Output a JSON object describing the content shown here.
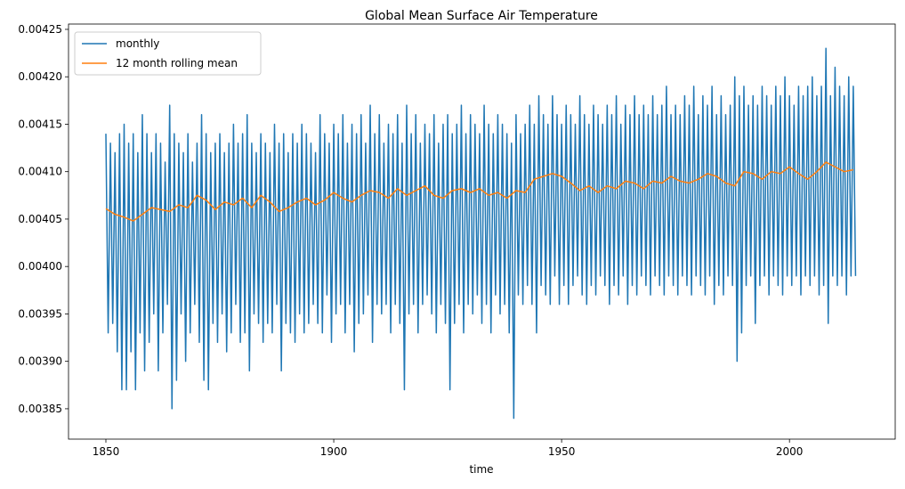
{
  "chart_data": {
    "type": "line",
    "title": "Global Mean Surface Air Temperature",
    "xlabel": "time",
    "xlim": [
      1841.8,
      2023.2
    ],
    "xticks": [
      1850,
      1900,
      1950,
      2000
    ],
    "ylim": [
      0.003818,
      0.0042556
    ],
    "yticks": [
      0.00385,
      {
        "value": 0.0039,
        "label": "0.00390"
      },
      0.00395,
      {
        "value": 0.004,
        "label": "0.00400"
      },
      0.00405,
      {
        "value": 0.0041,
        "label": "0.00410"
      },
      0.00415,
      {
        "value": 0.0042,
        "label": "0.00420"
      },
      0.00425
    ],
    "grid": false,
    "legend": "upper left",
    "series": [
      {
        "name": "monthly",
        "color": "#1f77b4",
        "x": [
          1850,
          1850.5,
          1851,
          1851.5,
          1852,
          1852.5,
          1853,
          1853.5,
          1854,
          1854.5,
          1855,
          1855.5,
          1856,
          1856.5,
          1857,
          1857.5,
          1858,
          1858.5,
          1859,
          1859.5,
          1860,
          1860.5,
          1861,
          1861.5,
          1862,
          1862.5,
          1863,
          1863.5,
          1864,
          1864.5,
          1865,
          1865.5,
          1866,
          1866.5,
          1867,
          1867.5,
          1868,
          1868.5,
          1869,
          1869.5,
          1870,
          1870.5,
          1871,
          1871.5,
          1872,
          1872.5,
          1873,
          1873.5,
          1874,
          1874.5,
          1875,
          1875.5,
          1876,
          1876.5,
          1877,
          1877.5,
          1878,
          1878.5,
          1879,
          1879.5,
          1880,
          1880.5,
          1881,
          1881.5,
          1882,
          1882.5,
          1883,
          1883.5,
          1884,
          1884.5,
          1885,
          1885.5,
          1886,
          1886.5,
          1887,
          1887.5,
          1888,
          1888.5,
          1889,
          1889.5,
          1890,
          1890.5,
          1891,
          1891.5,
          1892,
          1892.5,
          1893,
          1893.5,
          1894,
          1894.5,
          1895,
          1895.5,
          1896,
          1896.5,
          1897,
          1897.5,
          1898,
          1898.5,
          1899,
          1899.5,
          1900,
          1900.5,
          1901,
          1901.5,
          1902,
          1902.5,
          1903,
          1903.5,
          1904,
          1904.5,
          1905,
          1905.5,
          1906,
          1906.5,
          1907,
          1907.5,
          1908,
          1908.5,
          1909,
          1909.5,
          1910,
          1910.5,
          1911,
          1911.5,
          1912,
          1912.5,
          1913,
          1913.5,
          1914,
          1914.5,
          1915,
          1915.5,
          1916,
          1916.5,
          1917,
          1917.5,
          1918,
          1918.5,
          1919,
          1919.5,
          1920,
          1920.5,
          1921,
          1921.5,
          1922,
          1922.5,
          1923,
          1923.5,
          1924,
          1924.5,
          1925,
          1925.5,
          1926,
          1926.5,
          1927,
          1927.5,
          1928,
          1928.5,
          1929,
          1929.5,
          1930,
          1930.5,
          1931,
          1931.5,
          1932,
          1932.5,
          1933,
          1933.5,
          1934,
          1934.5,
          1935,
          1935.5,
          1936,
          1936.5,
          1937,
          1937.5,
          1938,
          1938.5,
          1939,
          1939.5,
          1940,
          1940.5,
          1941,
          1941.5,
          1942,
          1942.5,
          1943,
          1943.5,
          1944,
          1944.5,
          1945,
          1945.5,
          1946,
          1946.5,
          1947,
          1947.5,
          1948,
          1948.5,
          1949,
          1949.5,
          1950,
          1950.5,
          1951,
          1951.5,
          1952,
          1952.5,
          1953,
          1953.5,
          1954,
          1954.5,
          1955,
          1955.5,
          1956,
          1956.5,
          1957,
          1957.5,
          1958,
          1958.5,
          1959,
          1959.5,
          1960,
          1960.5,
          1961,
          1961.5,
          1962,
          1962.5,
          1963,
          1963.5,
          1964,
          1964.5,
          1965,
          1965.5,
          1966,
          1966.5,
          1967,
          1967.5,
          1968,
          1968.5,
          1969,
          1969.5,
          1970,
          1970.5,
          1971,
          1971.5,
          1972,
          1972.5,
          1973,
          1973.5,
          1974,
          1974.5,
          1975,
          1975.5,
          1976,
          1976.5,
          1977,
          1977.5,
          1978,
          1978.5,
          1979,
          1979.5,
          1980,
          1980.5,
          1981,
          1981.5,
          1982,
          1982.5,
          1983,
          1983.5,
          1984,
          1984.5,
          1985,
          1985.5,
          1986,
          1986.5,
          1987,
          1987.5,
          1988,
          1988.5,
          1989,
          1989.5,
          1990,
          1990.5,
          1991,
          1991.5,
          1992,
          1992.5,
          1993,
          1993.5,
          1994,
          1994.5,
          1995,
          1995.5,
          1996,
          1996.5,
          1997,
          1997.5,
          1998,
          1998.5,
          1999,
          1999.5,
          2000,
          2000.5,
          2001,
          2001.5,
          2002,
          2002.5,
          2003,
          2003.5,
          2004,
          2004.5,
          2005,
          2005.5,
          2006,
          2006.5,
          2007,
          2007.5,
          2008,
          2008.5,
          2009,
          2009.5,
          2010,
          2010.5,
          2011,
          2011.5,
          2012,
          2012.5,
          2013,
          2013.5,
          2014,
          2014.5
        ],
        "values": [
          0.00414,
          0.00393,
          0.00413,
          0.00394,
          0.00412,
          0.00391,
          0.00414,
          0.00387,
          0.00415,
          0.00387,
          0.00413,
          0.00391,
          0.00414,
          0.00387,
          0.00412,
          0.00393,
          0.00416,
          0.00389,
          0.00414,
          0.00392,
          0.00412,
          0.00395,
          0.00414,
          0.00389,
          0.00413,
          0.00393,
          0.00411,
          0.00396,
          0.00417,
          0.00385,
          0.00414,
          0.00388,
          0.00413,
          0.00395,
          0.00412,
          0.0039,
          0.00414,
          0.00393,
          0.00411,
          0.00396,
          0.00413,
          0.00392,
          0.00416,
          0.00388,
          0.00414,
          0.00387,
          0.00412,
          0.00394,
          0.00413,
          0.00392,
          0.00414,
          0.00395,
          0.00412,
          0.00391,
          0.00413,
          0.00393,
          0.00415,
          0.00396,
          0.00413,
          0.00392,
          0.00414,
          0.00393,
          0.00416,
          0.00389,
          0.00413,
          0.00395,
          0.00412,
          0.00394,
          0.00414,
          0.00392,
          0.00413,
          0.00394,
          0.00412,
          0.00393,
          0.00415,
          0.00396,
          0.00413,
          0.00389,
          0.00414,
          0.00394,
          0.00412,
          0.00393,
          0.00414,
          0.00392,
          0.00413,
          0.00395,
          0.00415,
          0.00393,
          0.00414,
          0.00394,
          0.00413,
          0.00396,
          0.00412,
          0.00394,
          0.00416,
          0.00393,
          0.00414,
          0.00397,
          0.00413,
          0.00392,
          0.00415,
          0.00395,
          0.00414,
          0.00396,
          0.00416,
          0.00393,
          0.00413,
          0.00396,
          0.00415,
          0.00391,
          0.00414,
          0.00394,
          0.00416,
          0.00395,
          0.00413,
          0.00397,
          0.00417,
          0.00392,
          0.00414,
          0.00396,
          0.00416,
          0.00395,
          0.00413,
          0.00396,
          0.00415,
          0.00393,
          0.00414,
          0.00396,
          0.00416,
          0.00394,
          0.00413,
          0.00387,
          0.00417,
          0.00395,
          0.00414,
          0.00396,
          0.00416,
          0.00393,
          0.00413,
          0.00396,
          0.00415,
          0.00397,
          0.00414,
          0.00395,
          0.00416,
          0.00393,
          0.00413,
          0.00396,
          0.00415,
          0.00394,
          0.00416,
          0.00387,
          0.00414,
          0.00394,
          0.00415,
          0.00396,
          0.00417,
          0.00393,
          0.00414,
          0.00396,
          0.00416,
          0.00395,
          0.00415,
          0.00397,
          0.00414,
          0.00394,
          0.00417,
          0.00396,
          0.00415,
          0.00393,
          0.00414,
          0.00397,
          0.00416,
          0.00395,
          0.00415,
          0.00396,
          0.00414,
          0.00393,
          0.00413,
          0.00384,
          0.00416,
          0.00397,
          0.00414,
          0.00396,
          0.00415,
          0.00398,
          0.00417,
          0.00396,
          0.00415,
          0.00393,
          0.00418,
          0.00398,
          0.00416,
          0.00397,
          0.00415,
          0.00396,
          0.00418,
          0.00399,
          0.00416,
          0.00396,
          0.00415,
          0.00398,
          0.00417,
          0.00396,
          0.00416,
          0.00398,
          0.00415,
          0.00399,
          0.00418,
          0.00397,
          0.00416,
          0.00396,
          0.00415,
          0.00398,
          0.00417,
          0.00397,
          0.00416,
          0.00399,
          0.00415,
          0.00398,
          0.00417,
          0.00396,
          0.00416,
          0.00398,
          0.00418,
          0.00397,
          0.00415,
          0.00399,
          0.00417,
          0.00396,
          0.00416,
          0.00398,
          0.00418,
          0.00397,
          0.00416,
          0.00399,
          0.00417,
          0.00398,
          0.00416,
          0.00397,
          0.00418,
          0.00399,
          0.00416,
          0.00398,
          0.00417,
          0.00397,
          0.00419,
          0.00399,
          0.00416,
          0.00398,
          0.00417,
          0.00397,
          0.00416,
          0.00399,
          0.00418,
          0.00398,
          0.00417,
          0.00397,
          0.00419,
          0.00399,
          0.00416,
          0.00398,
          0.00418,
          0.00397,
          0.00417,
          0.00399,
          0.00419,
          0.00396,
          0.00416,
          0.00398,
          0.00418,
          0.00397,
          0.00416,
          0.00399,
          0.00417,
          0.00398,
          0.0042,
          0.0039,
          0.00418,
          0.00393,
          0.00419,
          0.00398,
          0.00417,
          0.00399,
          0.00418,
          0.00394,
          0.00417,
          0.00398,
          0.00419,
          0.00399,
          0.00418,
          0.00397,
          0.00417,
          0.00399,
          0.00419,
          0.00398,
          0.00418,
          0.00397,
          0.0042,
          0.00399,
          0.00418,
          0.00398,
          0.00417,
          0.00399,
          0.00419,
          0.00397,
          0.00418,
          0.00399,
          0.00419,
          0.00398,
          0.0042,
          0.00399,
          0.00418,
          0.00397,
          0.00419,
          0.00398,
          0.00423,
          0.00394,
          0.00418,
          0.00399,
          0.00421,
          0.00398,
          0.00419,
          0.00399,
          0.00418,
          0.00397,
          0.0042,
          0.00399,
          0.00419,
          0.00399
        ]
      },
      {
        "name": "12 month rolling mean",
        "color": "#ff7f0e",
        "x": [
          1850,
          1852,
          1854,
          1856,
          1858,
          1860,
          1862,
          1864,
          1866,
          1868,
          1870,
          1872,
          1874,
          1876,
          1878,
          1880,
          1882,
          1884,
          1886,
          1888,
          1890,
          1892,
          1894,
          1896,
          1898,
          1900,
          1902,
          1904,
          1906,
          1908,
          1910,
          1912,
          1914,
          1916,
          1918,
          1920,
          1922,
          1924,
          1926,
          1928,
          1930,
          1932,
          1934,
          1936,
          1938,
          1940,
          1942,
          1944,
          1946,
          1948,
          1950,
          1952,
          1954,
          1956,
          1958,
          1960,
          1962,
          1964,
          1966,
          1968,
          1970,
          1972,
          1974,
          1976,
          1978,
          1980,
          1982,
          1984,
          1986,
          1988,
          1990,
          1992,
          1994,
          1996,
          1998,
          2000,
          2002,
          2004,
          2006,
          2008,
          2010,
          2012,
          2014
        ],
        "values": [
          0.004061,
          0.004055,
          0.004052,
          0.004048,
          0.004055,
          0.004062,
          0.00406,
          0.004058,
          0.004065,
          0.004062,
          0.004075,
          0.00407,
          0.00406,
          0.004068,
          0.004065,
          0.004072,
          0.004062,
          0.004075,
          0.004068,
          0.004058,
          0.004062,
          0.004068,
          0.004072,
          0.004065,
          0.00407,
          0.004078,
          0.004072,
          0.004068,
          0.004075,
          0.00408,
          0.004078,
          0.004072,
          0.004082,
          0.004075,
          0.00408,
          0.004085,
          0.004075,
          0.004072,
          0.00408,
          0.004082,
          0.004078,
          0.004082,
          0.004075,
          0.004078,
          0.004072,
          0.00408,
          0.004078,
          0.004092,
          0.004095,
          0.004098,
          0.004095,
          0.004088,
          0.00408,
          0.004085,
          0.004078,
          0.004085,
          0.004082,
          0.00409,
          0.004088,
          0.004082,
          0.00409,
          0.004088,
          0.004095,
          0.00409,
          0.004088,
          0.004092,
          0.004098,
          0.004095,
          0.004088,
          0.004085,
          0.0041,
          0.004098,
          0.004092,
          0.0041,
          0.004098,
          0.004105,
          0.004098,
          0.004092,
          0.0041,
          0.00411,
          0.004105,
          0.0041,
          0.004102
        ]
      }
    ]
  }
}
